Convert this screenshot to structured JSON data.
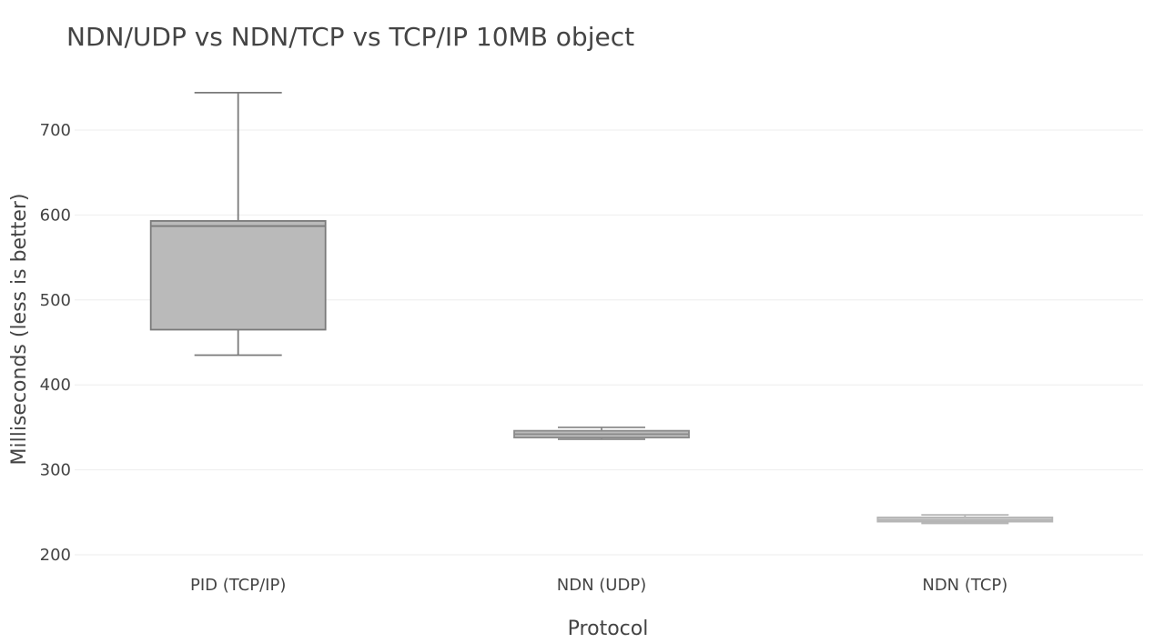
{
  "chart_data": {
    "type": "box",
    "title": "NDN/UDP vs NDN/TCP vs TCP/IP 10MB object",
    "xlabel": "Protocol",
    "ylabel": "Milliseconds (less is better)",
    "ylim": [
      180,
      760
    ],
    "yticks": [
      200,
      300,
      400,
      500,
      600,
      700
    ],
    "grid": true,
    "categories": [
      "PID (TCP/IP)",
      "NDN (UDP)",
      "NDN (TCP)"
    ],
    "boxes": [
      {
        "category": "PID (TCP/IP)",
        "min": 435,
        "q1": 465,
        "median": 587,
        "q3": 593,
        "max": 744,
        "fill": "#bababa",
        "stroke": "#7a7a7a"
      },
      {
        "category": "NDN (UDP)",
        "min": 336,
        "q1": 338,
        "median": 342,
        "q3": 346,
        "max": 350,
        "fill": "#bababa",
        "stroke": "#8a8a8a"
      },
      {
        "category": "NDN (TCP)",
        "min": 237,
        "q1": 239,
        "median": 241,
        "q3": 244,
        "max": 247,
        "fill": "#cfcfcf",
        "stroke": "#b5b5b5"
      }
    ]
  }
}
